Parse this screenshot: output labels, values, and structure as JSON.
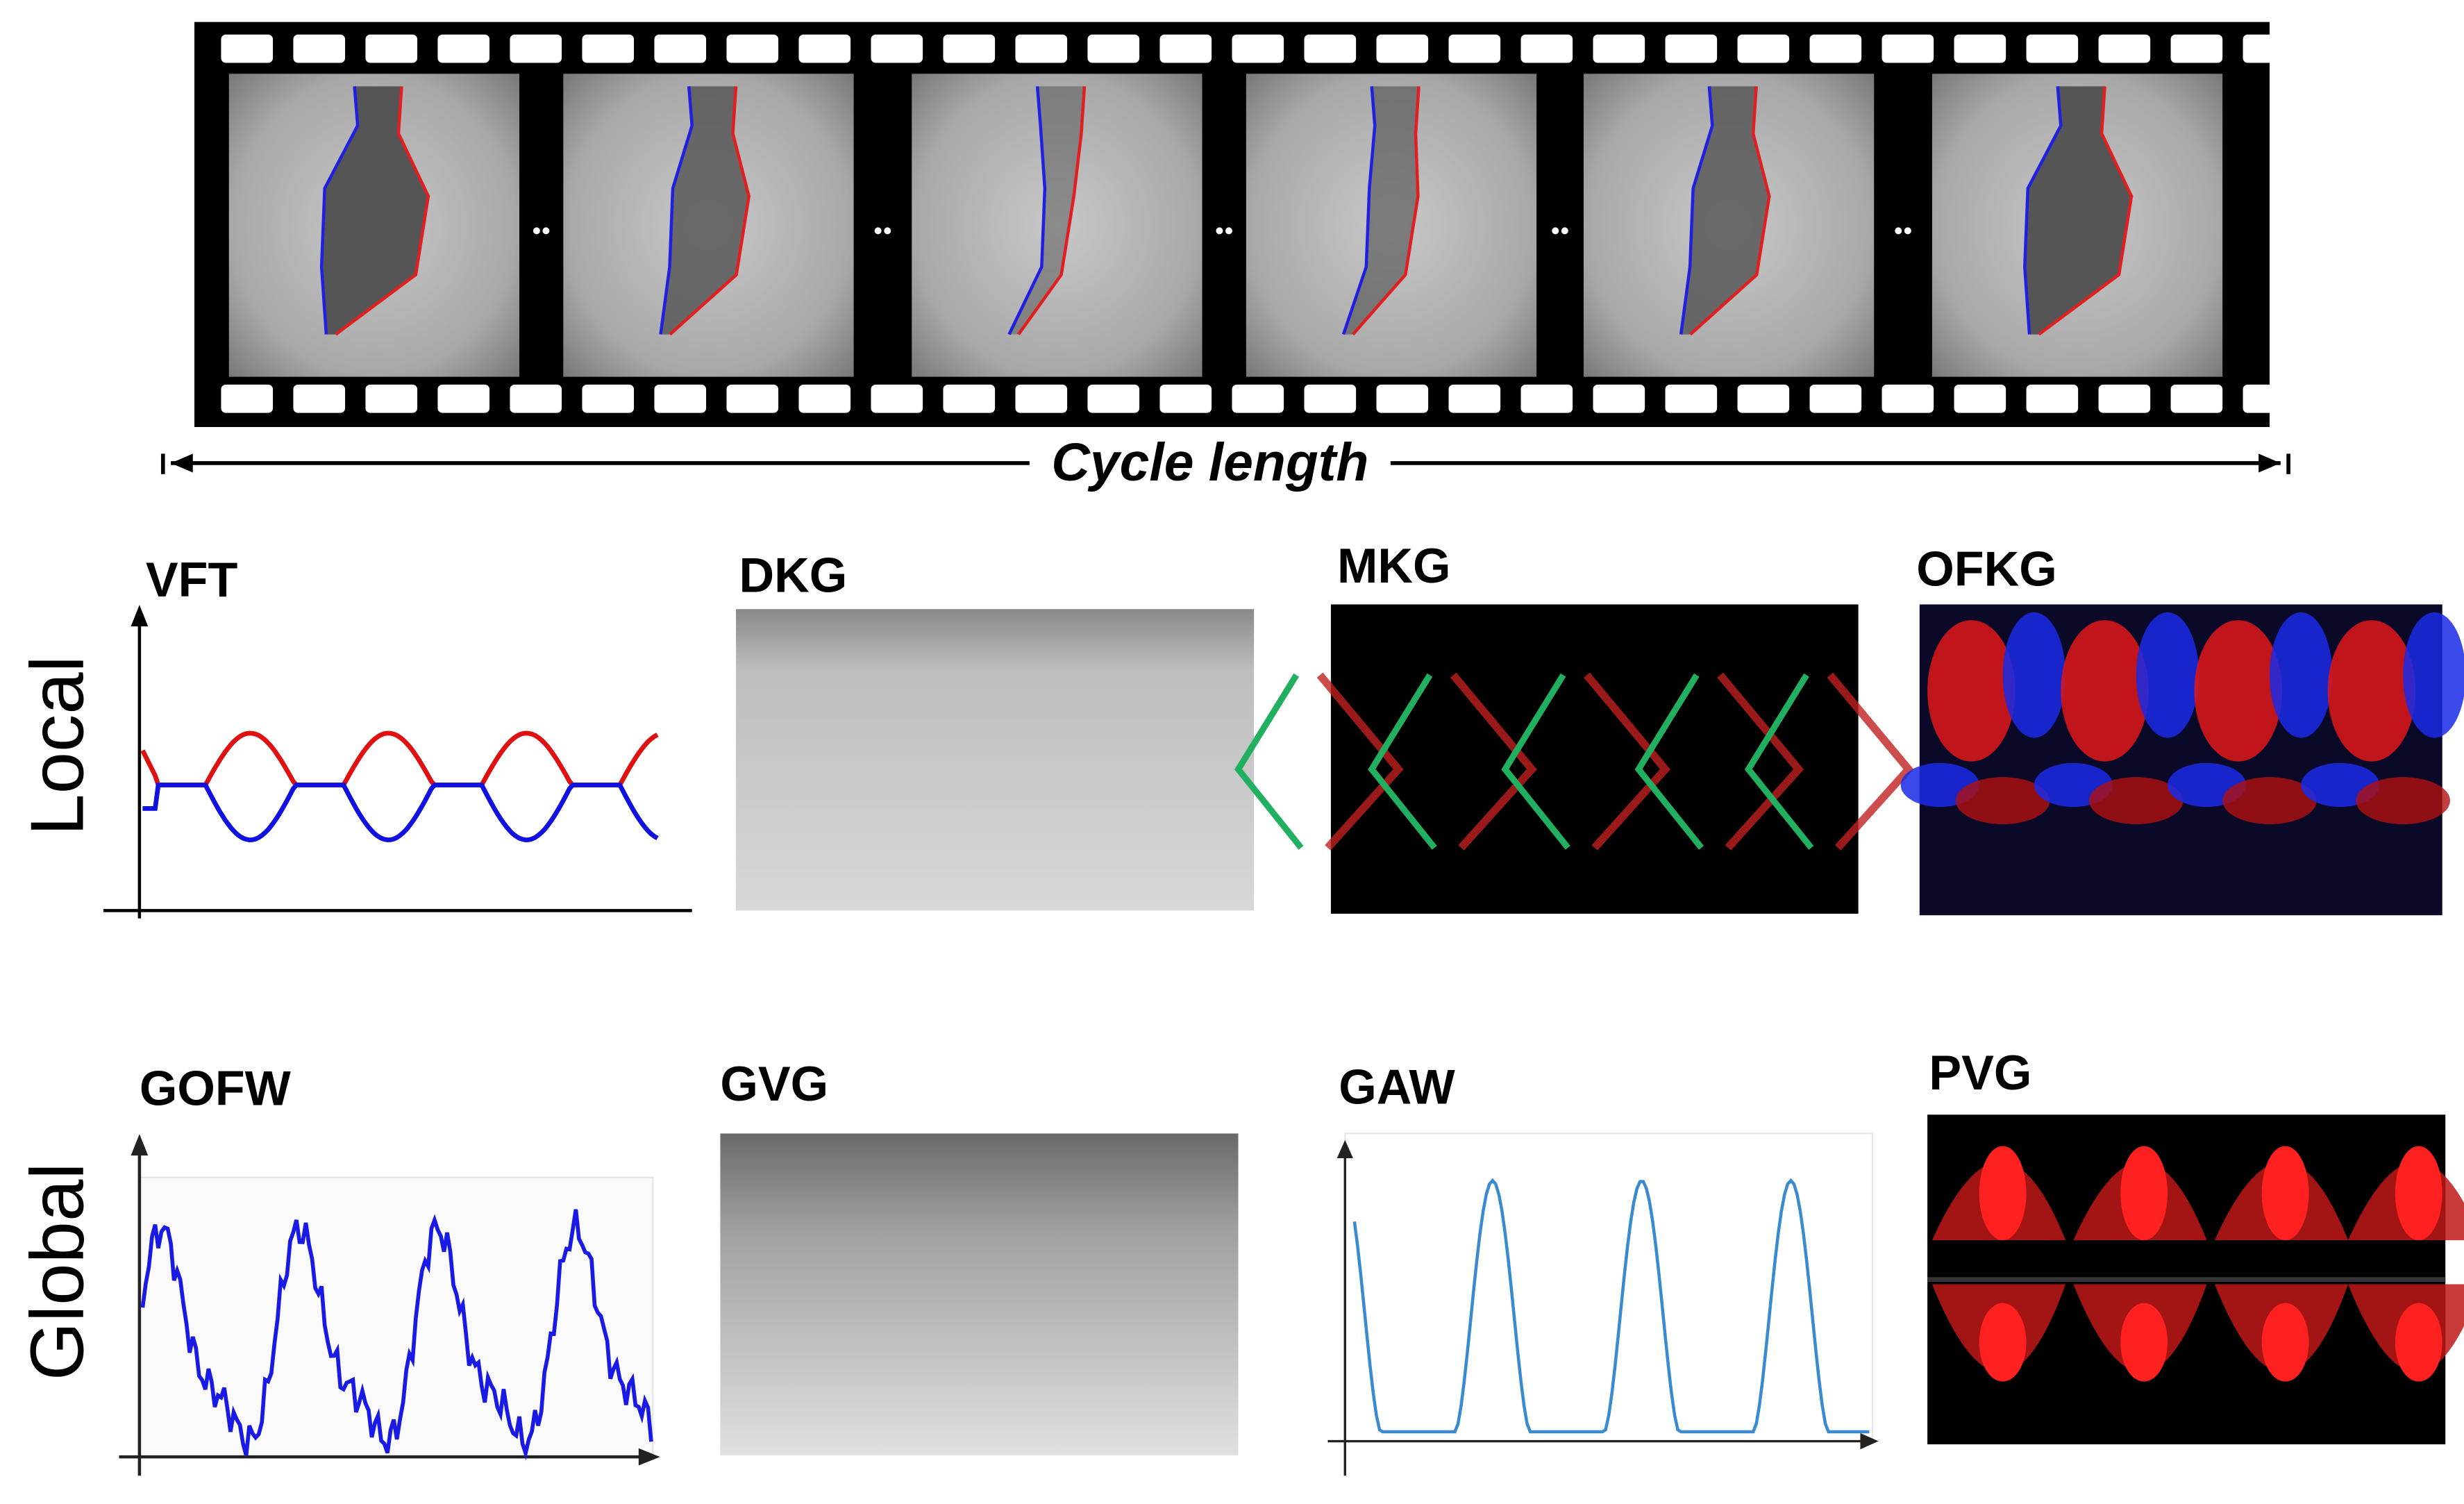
{
  "film": {
    "caption": "Cycle length"
  },
  "rows": [
    {
      "label": "Local",
      "panels": [
        {
          "label": "VFT"
        },
        {
          "label": "DKG"
        },
        {
          "label": "MKG"
        },
        {
          "label": "OFKG"
        }
      ]
    },
    {
      "label": "Global",
      "panels": [
        {
          "label": "GOFW"
        },
        {
          "label": "GVG"
        },
        {
          "label": "GAW"
        },
        {
          "label": "PVG"
        }
      ]
    }
  ]
}
